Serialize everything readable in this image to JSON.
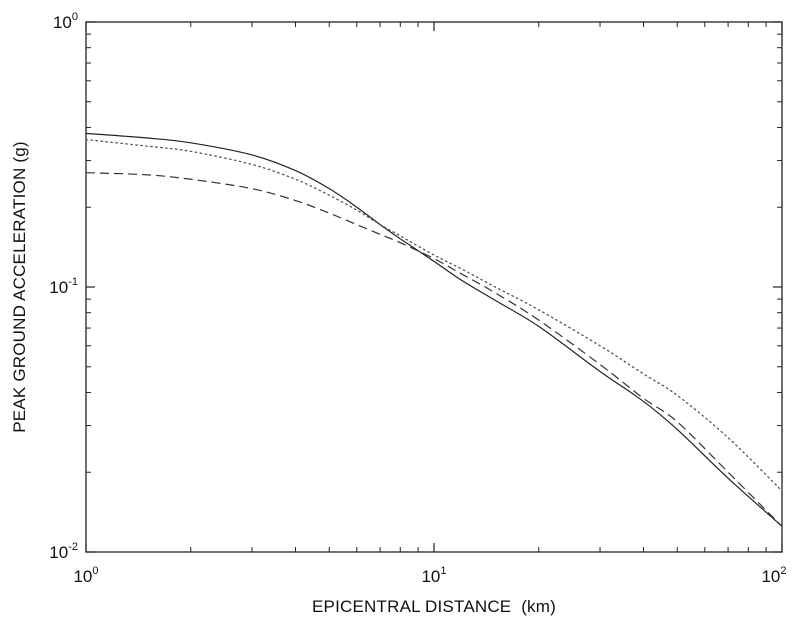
{
  "chart_data": {
    "type": "line",
    "title": "",
    "xlabel": "EPICENTRAL DISTANCE  (km)",
    "ylabel": "PEAK GROUND ACCELERATION (g)",
    "xscale": "log",
    "yscale": "log",
    "xlim": [
      1,
      100
    ],
    "ylim": [
      0.01,
      1
    ],
    "grid": false,
    "x_ticks": [
      {
        "value": 1,
        "base": "10",
        "exp": "0"
      },
      {
        "value": 10,
        "base": "10",
        "exp": "1"
      },
      {
        "value": 100,
        "base": "10",
        "exp": "2"
      }
    ],
    "y_ticks": [
      {
        "value": 0.01,
        "base": "10",
        "exp": "-2"
      },
      {
        "value": 0.1,
        "base": "10",
        "exp": "-1"
      },
      {
        "value": 1,
        "base": "10",
        "exp": "0"
      }
    ],
    "series": [
      {
        "style": "solid",
        "x": [
          1,
          1.5,
          2,
          3,
          4,
          5,
          6,
          7,
          8,
          10,
          12,
          15,
          20,
          30,
          40,
          50,
          70,
          100
        ],
        "y": [
          0.38,
          0.365,
          0.35,
          0.315,
          0.275,
          0.235,
          0.2,
          0.172,
          0.152,
          0.125,
          0.106,
          0.089,
          0.071,
          0.048,
          0.037,
          0.029,
          0.019,
          0.0125
        ]
      },
      {
        "style": "dashed",
        "x": [
          1,
          1.5,
          2,
          3,
          4,
          5,
          6,
          7,
          8,
          10,
          12,
          15,
          20,
          30,
          40,
          50,
          70,
          100
        ],
        "y": [
          0.27,
          0.265,
          0.255,
          0.235,
          0.212,
          0.19,
          0.172,
          0.158,
          0.147,
          0.128,
          0.112,
          0.095,
          0.075,
          0.051,
          0.038,
          0.031,
          0.02,
          0.0125
        ]
      },
      {
        "style": "dotted",
        "x": [
          1,
          1.5,
          2,
          3,
          4,
          5,
          6,
          7,
          8,
          10,
          12,
          15,
          20,
          30,
          40,
          50,
          70,
          100
        ],
        "y": [
          0.36,
          0.34,
          0.325,
          0.29,
          0.255,
          0.222,
          0.195,
          0.172,
          0.156,
          0.132,
          0.117,
          0.1,
          0.082,
          0.06,
          0.047,
          0.039,
          0.027,
          0.017
        ]
      }
    ]
  }
}
